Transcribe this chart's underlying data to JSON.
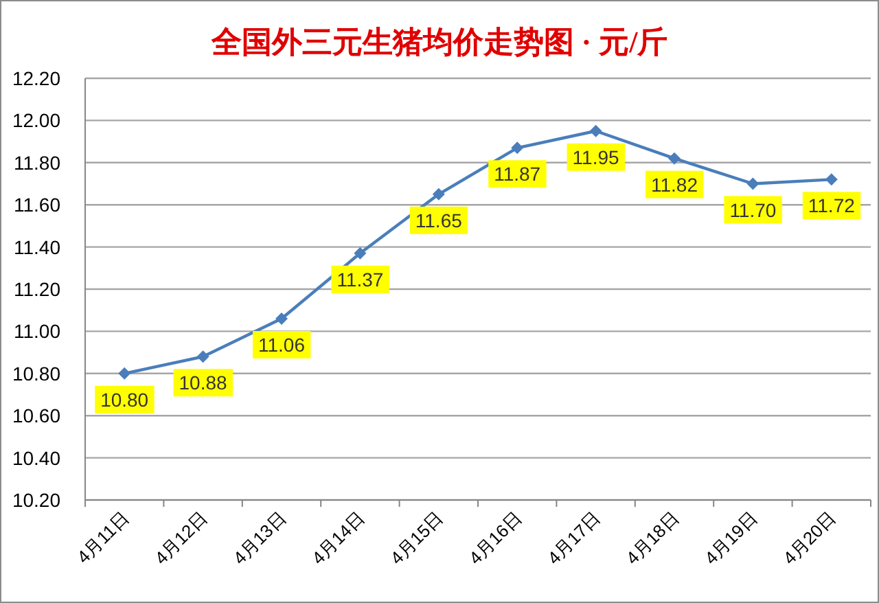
{
  "chart_data": {
    "type": "line",
    "title": "全国外三元生猪均价走势图 · 元/斤",
    "categories": [
      "4月11日",
      "4月12日",
      "4月13日",
      "4月14日",
      "4月15日",
      "4月16日",
      "4月17日",
      "4月18日",
      "4月19日",
      "4月20日"
    ],
    "series": [
      {
        "color": "#4a7ebb",
        "values": [
          10.8,
          10.88,
          11.06,
          11.37,
          11.65,
          11.87,
          11.95,
          11.82,
          11.7,
          11.72
        ],
        "value_labels": [
          "10.80",
          "10.88",
          "11.06",
          "11.37",
          "11.65",
          "11.87",
          "11.95",
          "11.82",
          "11.70",
          "11.72"
        ]
      }
    ],
    "ylim": [
      10.2,
      12.2
    ],
    "yticks": [
      {
        "value": 10.2,
        "label": "10.20"
      },
      {
        "value": 10.4,
        "label": "10.40"
      },
      {
        "value": 10.6,
        "label": "10.60"
      },
      {
        "value": 10.8,
        "label": "10.80"
      },
      {
        "value": 11.0,
        "label": "11.00"
      },
      {
        "value": 11.2,
        "label": "11.20"
      },
      {
        "value": 11.4,
        "label": "11.40"
      },
      {
        "value": 11.6,
        "label": "11.60"
      },
      {
        "value": 11.8,
        "label": "11.80"
      },
      {
        "value": 12.0,
        "label": "12.00"
      },
      {
        "value": 12.2,
        "label": "12.20"
      }
    ],
    "grid": "y",
    "marker": "diamond",
    "line_style": "solid"
  }
}
